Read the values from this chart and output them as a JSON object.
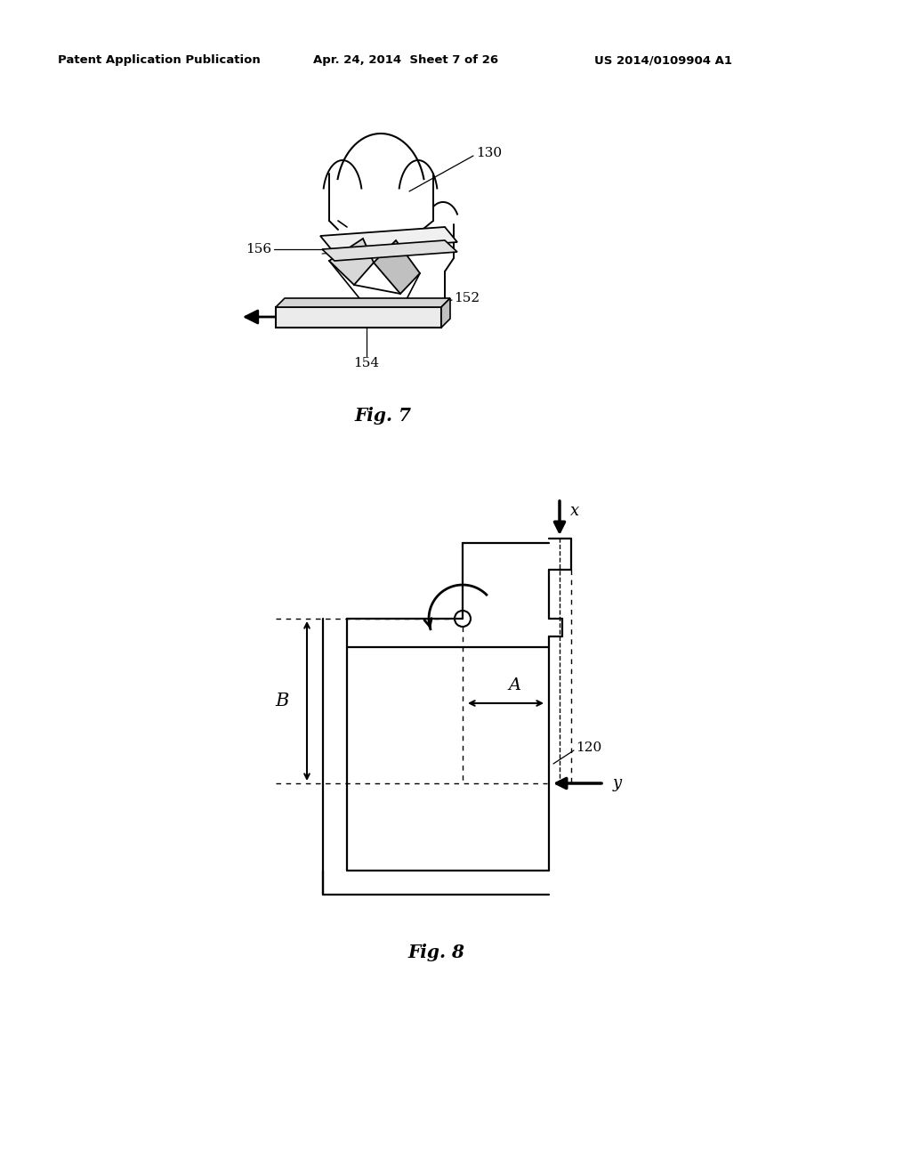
{
  "bg_color": "#ffffff",
  "header_left": "Patent Application Publication",
  "header_mid": "Apr. 24, 2014  Sheet 7 of 26",
  "header_right": "US 2014/0109904 A1",
  "fig7_caption": "Fig. 7",
  "fig8_caption": "Fig. 8",
  "label_130": "130",
  "label_156": "156",
  "label_152": "152",
  "label_154": "154",
  "label_120": "120",
  "label_A": "A",
  "label_B": "B",
  "label_x": "x",
  "label_y": "y",
  "text_color": "#000000",
  "line_color": "#000000"
}
